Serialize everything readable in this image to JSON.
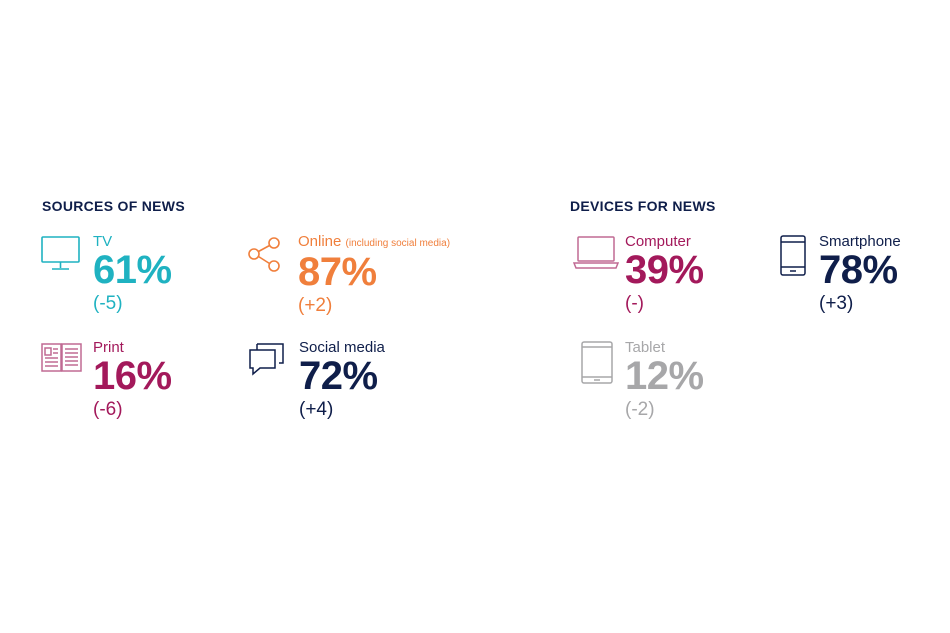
{
  "sources": {
    "title": "SOURCES OF NEWS",
    "items": [
      {
        "label": "TV",
        "value": "61%",
        "change": "(-5)",
        "color": "#1fb2c1",
        "icon": "tv-icon"
      },
      {
        "label": "Online",
        "note": "(including social media)",
        "value": "87%",
        "change": "(+2)",
        "color": "#f07f3c",
        "icon": "share-icon"
      },
      {
        "label": "Print",
        "value": "16%",
        "change": "(-6)",
        "color": "#a3195b",
        "icon": "newspaper-icon"
      },
      {
        "label": "Social media",
        "value": "72%",
        "change": "(+4)",
        "color": "#0f1e4a",
        "icon": "chat-bubbles-icon"
      }
    ]
  },
  "devices": {
    "title": "DEVICES FOR NEWS",
    "items": [
      {
        "label": "Computer",
        "value": "39%",
        "change": "(-)",
        "color": "#a3195b",
        "icon": "laptop-icon"
      },
      {
        "label": "Smartphone",
        "value": "78%",
        "change": "(+3)",
        "color": "#0f1e4a",
        "icon": "smartphone-icon"
      },
      {
        "label": "Tablet",
        "value": "12%",
        "change": "(-2)",
        "color": "#a7a7a9",
        "icon": "tablet-icon"
      }
    ]
  }
}
